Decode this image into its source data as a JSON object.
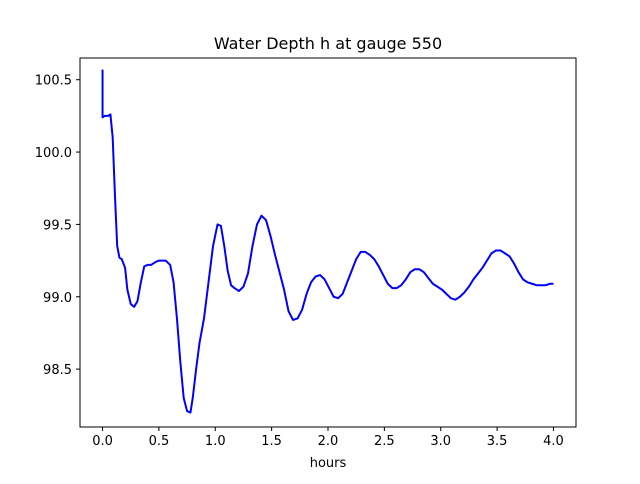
{
  "chart_data": {
    "type": "line",
    "title": "Water Depth h at gauge 550",
    "xlabel": "hours",
    "ylabel": "",
    "xlim": [
      -0.2,
      4.2
    ],
    "ylim": [
      98.1,
      100.65
    ],
    "xticks": [
      0.0,
      0.5,
      1.0,
      1.5,
      2.0,
      2.5,
      3.0,
      3.5,
      4.0
    ],
    "xtick_labels": [
      "0.0",
      "0.5",
      "1.0",
      "1.5",
      "2.0",
      "2.5",
      "3.0",
      "3.5",
      "4.0"
    ],
    "yticks": [
      98.5,
      99.0,
      99.5,
      100.0,
      100.5
    ],
    "ytick_labels": [
      "98.5",
      "99.0",
      "99.5",
      "100.0",
      "100.5"
    ],
    "grid": false,
    "series": [
      {
        "color": "#0000ff",
        "x": [
          0.0,
          0.0,
          0.0,
          0.02,
          0.05,
          0.07,
          0.09,
          0.11,
          0.13,
          0.15,
          0.17,
          0.2,
          0.22,
          0.25,
          0.28,
          0.31,
          0.34,
          0.37,
          0.4,
          0.43,
          0.47,
          0.5,
          0.53,
          0.56,
          0.6,
          0.63,
          0.66,
          0.69,
          0.72,
          0.75,
          0.78,
          0.8,
          0.83,
          0.86,
          0.9,
          0.94,
          0.98,
          1.02,
          1.05,
          1.08,
          1.11,
          1.14,
          1.17,
          1.21,
          1.25,
          1.29,
          1.33,
          1.37,
          1.41,
          1.45,
          1.49,
          1.53,
          1.57,
          1.61,
          1.65,
          1.69,
          1.73,
          1.77,
          1.81,
          1.85,
          1.89,
          1.93,
          1.97,
          2.01,
          2.05,
          2.09,
          2.13,
          2.17,
          2.21,
          2.25,
          2.29,
          2.33,
          2.37,
          2.41,
          2.45,
          2.49,
          2.53,
          2.57,
          2.61,
          2.65,
          2.69,
          2.73,
          2.77,
          2.81,
          2.85,
          2.89,
          2.93,
          2.97,
          3.01,
          3.05,
          3.09,
          3.13,
          3.17,
          3.21,
          3.25,
          3.29,
          3.33,
          3.37,
          3.41,
          3.45,
          3.49,
          3.53,
          3.57,
          3.61,
          3.65,
          3.69,
          3.73,
          3.77,
          3.81,
          3.85,
          3.89,
          3.93,
          3.97,
          4.0
        ],
        "y": [
          100.57,
          100.24,
          100.24,
          100.25,
          100.25,
          100.26,
          100.1,
          99.7,
          99.35,
          99.27,
          99.26,
          99.2,
          99.05,
          98.95,
          98.93,
          98.97,
          99.1,
          99.21,
          99.22,
          99.22,
          99.24,
          99.25,
          99.25,
          99.25,
          99.22,
          99.1,
          98.85,
          98.55,
          98.3,
          98.21,
          98.2,
          98.3,
          98.5,
          98.68,
          98.85,
          99.1,
          99.35,
          99.5,
          99.49,
          99.35,
          99.18,
          99.08,
          99.06,
          99.04,
          99.07,
          99.16,
          99.35,
          99.5,
          99.56,
          99.53,
          99.42,
          99.29,
          99.17,
          99.05,
          98.9,
          98.84,
          98.85,
          98.91,
          99.02,
          99.1,
          99.14,
          99.15,
          99.12,
          99.06,
          99.0,
          98.99,
          99.02,
          99.1,
          99.18,
          99.26,
          99.31,
          99.31,
          99.29,
          99.26,
          99.21,
          99.15,
          99.09,
          99.06,
          99.06,
          99.08,
          99.12,
          99.17,
          99.19,
          99.19,
          99.17,
          99.13,
          99.09,
          99.07,
          99.05,
          99.02,
          98.99,
          98.98,
          99.0,
          99.03,
          99.07,
          99.12,
          99.16,
          99.2,
          99.25,
          99.3,
          99.32,
          99.32,
          99.3,
          99.28,
          99.23,
          99.17,
          99.12,
          99.1,
          99.09,
          99.08,
          99.08,
          99.08,
          99.09,
          99.09
        ]
      }
    ]
  }
}
